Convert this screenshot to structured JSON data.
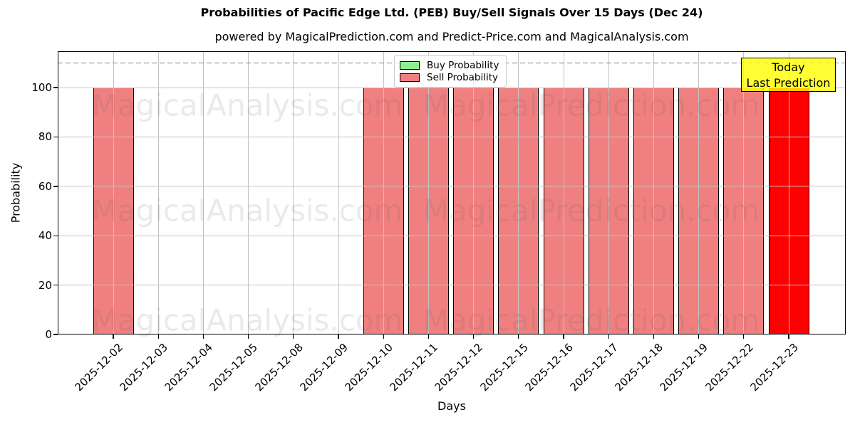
{
  "title": "Probabilities of Pacific Edge Ltd. (PEB) Buy/Sell Signals Over 15 Days (Dec 24)",
  "subtitle": "powered by MagicalPrediction.com and Predict-Price.com and MagicalAnalysis.com",
  "legend": {
    "buy_label": "Buy Probability",
    "sell_label": "Sell Probability"
  },
  "annotation": {
    "line1": "Today",
    "line2": "Last Prediction"
  },
  "watermarks": [
    "MagicalAnalysis.com",
    "MagicalPrediction.com"
  ],
  "axes": {
    "xlabel": "Days",
    "ylabel": "Probability",
    "yticks": [
      0,
      20,
      40,
      60,
      80,
      100
    ]
  },
  "colors": {
    "buy": "#90ee90",
    "sell": "#f08080",
    "today": "#ff0000",
    "annotation_bg": "rgba(255,255,0,0.8)",
    "grid": "#c3c3c3",
    "dashed": "#7f7f7f"
  },
  "chart_data": {
    "type": "bar",
    "title": "Probabilities of Pacific Edge Ltd. (PEB) Buy/Sell Signals Over 15 Days (Dec 24)",
    "xlabel": "Days",
    "ylabel": "Probability",
    "ylim": [
      0,
      114.7
    ],
    "grid": true,
    "legend_position": "upper center",
    "threshold_line": 110,
    "categories": [
      "2025-12-02",
      "2025-12-03",
      "2025-12-04",
      "2025-12-05",
      "2025-12-08",
      "2025-12-09",
      "2025-12-10",
      "2025-12-11",
      "2025-12-12",
      "2025-12-15",
      "2025-12-16",
      "2025-12-17",
      "2025-12-18",
      "2025-12-19",
      "2025-12-22",
      "2025-12-23"
    ],
    "series": [
      {
        "name": "Buy Probability",
        "color": "#90ee90",
        "values": [
          0,
          0,
          0,
          0,
          0,
          0,
          0,
          0,
          0,
          0,
          0,
          0,
          0,
          0,
          0,
          0
        ]
      },
      {
        "name": "Sell Probability",
        "color": "#f08080",
        "values": [
          100,
          0,
          0,
          0,
          0,
          0,
          100,
          100,
          100,
          100,
          100,
          100,
          100,
          100,
          100,
          100
        ]
      }
    ],
    "today_category": "2025-12-23",
    "today_color": "#ff0000"
  }
}
